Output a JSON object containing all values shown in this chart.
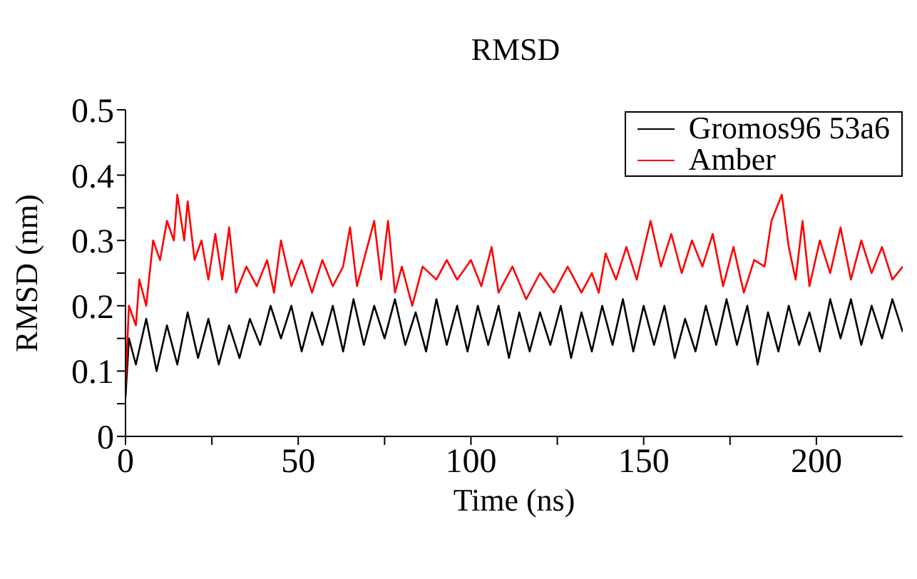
{
  "chart_data": {
    "type": "line",
    "title": "RMSD",
    "xlabel": "Time (ns)",
    "ylabel": "RMSD (nm)",
    "xlim": [
      0,
      225
    ],
    "ylim": [
      0,
      0.5
    ],
    "xticks": [
      0,
      {
        "value": 25,
        "label": null
      },
      50,
      {
        "value": 75,
        "label": null
      },
      100,
      {
        "value": 125,
        "label": null
      },
      150,
      {
        "value": 175,
        "label": null
      },
      200
    ],
    "yticks": [
      0,
      {
        "value": 0.05,
        "label": null
      },
      0.1,
      {
        "value": 0.15,
        "label": null
      },
      0.2,
      {
        "value": 0.25,
        "label": null
      },
      0.3,
      {
        "value": 0.35,
        "label": null
      },
      0.4,
      {
        "value": 0.45,
        "label": null
      },
      0.5
    ],
    "grid": false,
    "legend": "top right",
    "marker": "none",
    "line_style": "solid",
    "series": [
      {
        "name": "Gromos96 53a6",
        "color": "#000000",
        "x": [
          0,
          1,
          3,
          6,
          9,
          12,
          15,
          18,
          21,
          24,
          27,
          30,
          33,
          36,
          39,
          42,
          45,
          48,
          51,
          54,
          57,
          60,
          63,
          66,
          69,
          72,
          75,
          78,
          81,
          84,
          87,
          90,
          93,
          96,
          99,
          102,
          105,
          108,
          111,
          114,
          117,
          120,
          123,
          126,
          129,
          132,
          135,
          138,
          141,
          144,
          147,
          150,
          153,
          156,
          159,
          162,
          165,
          168,
          171,
          174,
          177,
          180,
          183,
          186,
          189,
          192,
          195,
          198,
          201,
          204,
          207,
          210,
          213,
          216,
          219,
          222,
          225
        ],
        "values": [
          0.06,
          0.15,
          0.11,
          0.18,
          0.1,
          0.17,
          0.11,
          0.19,
          0.12,
          0.18,
          0.11,
          0.17,
          0.12,
          0.18,
          0.14,
          0.2,
          0.15,
          0.2,
          0.13,
          0.19,
          0.14,
          0.2,
          0.13,
          0.21,
          0.14,
          0.2,
          0.15,
          0.21,
          0.14,
          0.19,
          0.13,
          0.21,
          0.14,
          0.2,
          0.13,
          0.2,
          0.14,
          0.2,
          0.12,
          0.19,
          0.13,
          0.19,
          0.14,
          0.2,
          0.12,
          0.19,
          0.13,
          0.2,
          0.14,
          0.21,
          0.13,
          0.2,
          0.14,
          0.2,
          0.12,
          0.18,
          0.13,
          0.2,
          0.14,
          0.21,
          0.14,
          0.2,
          0.11,
          0.19,
          0.13,
          0.2,
          0.14,
          0.19,
          0.13,
          0.21,
          0.15,
          0.21,
          0.14,
          0.2,
          0.15,
          0.21,
          0.16
        ]
      },
      {
        "name": "Amber",
        "color": "#ff0000",
        "x": [
          0,
          1,
          3,
          4,
          6,
          8,
          10,
          12,
          14,
          15,
          17,
          18,
          20,
          22,
          24,
          26,
          28,
          30,
          32,
          35,
          38,
          41,
          43,
          45,
          48,
          51,
          54,
          57,
          60,
          63,
          65,
          67,
          70,
          72,
          74,
          76,
          78,
          80,
          83,
          86,
          90,
          93,
          96,
          100,
          103,
          106,
          108,
          112,
          116,
          120,
          124,
          128,
          132,
          135,
          137,
          139,
          142,
          145,
          148,
          152,
          155,
          158,
          161,
          164,
          167,
          170,
          173,
          176,
          179,
          182,
          185,
          187,
          190,
          192,
          194,
          196,
          198,
          201,
          204,
          207,
          210,
          213,
          216,
          219,
          222,
          225
        ],
        "values": [
          0.08,
          0.2,
          0.17,
          0.24,
          0.2,
          0.3,
          0.27,
          0.33,
          0.3,
          0.37,
          0.3,
          0.36,
          0.27,
          0.3,
          0.24,
          0.31,
          0.24,
          0.32,
          0.22,
          0.26,
          0.23,
          0.27,
          0.22,
          0.3,
          0.23,
          0.27,
          0.22,
          0.27,
          0.23,
          0.26,
          0.32,
          0.23,
          0.29,
          0.33,
          0.24,
          0.33,
          0.22,
          0.26,
          0.2,
          0.26,
          0.24,
          0.27,
          0.24,
          0.27,
          0.23,
          0.29,
          0.22,
          0.26,
          0.21,
          0.25,
          0.22,
          0.26,
          0.22,
          0.25,
          0.22,
          0.28,
          0.24,
          0.29,
          0.24,
          0.33,
          0.26,
          0.31,
          0.25,
          0.3,
          0.26,
          0.31,
          0.23,
          0.29,
          0.22,
          0.27,
          0.26,
          0.33,
          0.37,
          0.29,
          0.24,
          0.33,
          0.23,
          0.3,
          0.25,
          0.32,
          0.24,
          0.3,
          0.25,
          0.29,
          0.24,
          0.26
        ]
      }
    ]
  }
}
